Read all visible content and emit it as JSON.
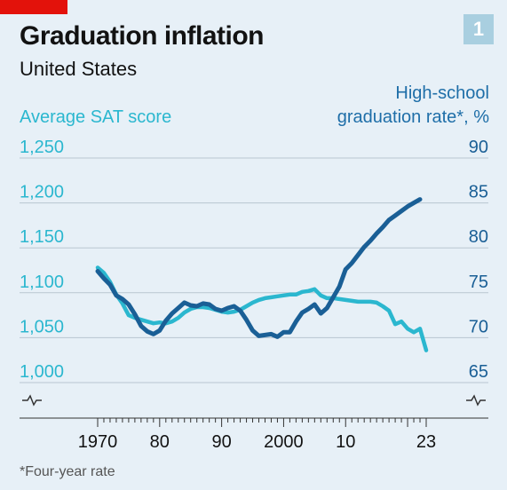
{
  "badge": "1",
  "title": "Graduation inflation",
  "subtitle": "United States",
  "footnote": "*Four-year rate",
  "colors": {
    "sat": "#2bb7cf",
    "grad": "#1a5f96",
    "accent": "#e3120b"
  },
  "chart_data": {
    "type": "line",
    "left_axis": {
      "label": "Average SAT score",
      "range": [
        1000,
        1250
      ],
      "ticks": [
        "1,250",
        "1,200",
        "1,150",
        "1,100",
        "1,050",
        "1,000"
      ],
      "tick_values": [
        1250,
        1200,
        1150,
        1100,
        1050,
        1000
      ]
    },
    "right_axis": {
      "label_lines": [
        "High-school",
        "graduation rate*, %"
      ],
      "range": [
        65,
        90
      ],
      "ticks": [
        "90",
        "85",
        "80",
        "75",
        "70",
        "65"
      ],
      "tick_values": [
        90,
        85,
        80,
        75,
        70,
        65
      ]
    },
    "x_axis": {
      "range": [
        1970,
        2023
      ],
      "ticks": [
        "1970",
        "80",
        "90",
        "2000",
        "10",
        "23"
      ],
      "tick_values": [
        1970,
        1980,
        1990,
        2000,
        2010,
        2023
      ]
    },
    "series": [
      {
        "key": "sat",
        "axis": "left",
        "color": "#2bb7cf",
        "x": [
          1970,
          1971,
          1972,
          1973,
          1974,
          1975,
          1976,
          1977,
          1978,
          1979,
          1980,
          1981,
          1982,
          1983,
          1984,
          1985,
          1986,
          1987,
          1988,
          1989,
          1990,
          1991,
          1992,
          1993,
          1994,
          1995,
          1996,
          1997,
          1998,
          1999,
          2000,
          2001,
          2002,
          2003,
          2004,
          2005,
          2006,
          2007,
          2008,
          2009,
          2010,
          2011,
          2012,
          2013,
          2014,
          2015,
          2016,
          2017,
          2018,
          2019,
          2020,
          2021,
          2022,
          2023
        ],
        "values": [
          1128,
          1122,
          1112,
          1098,
          1088,
          1075,
          1072,
          1070,
          1068,
          1066,
          1067,
          1066,
          1068,
          1072,
          1078,
          1082,
          1084,
          1084,
          1083,
          1081,
          1079,
          1078,
          1079,
          1081,
          1085,
          1089,
          1092,
          1094,
          1095,
          1096,
          1097,
          1098,
          1098,
          1101,
          1102,
          1104,
          1097,
          1094,
          1094,
          1093,
          1092,
          1091,
          1090,
          1090,
          1090,
          1089,
          1085,
          1080,
          1065,
          1068,
          1060,
          1056,
          1060,
          1036
        ]
      },
      {
        "key": "grad",
        "axis": "right",
        "color": "#1a5f96",
        "x": [
          1970,
          1971,
          1972,
          1973,
          1974,
          1975,
          1976,
          1977,
          1978,
          1979,
          1980,
          1981,
          1982,
          1983,
          1984,
          1985,
          1986,
          1987,
          1988,
          1989,
          1990,
          1991,
          1992,
          1993,
          1994,
          1995,
          1996,
          1997,
          1998,
          1999,
          2000,
          2001,
          2002,
          2003,
          2004,
          2005,
          2006,
          2007,
          2008,
          2009,
          2010,
          2011,
          2012,
          2013,
          2014,
          2015,
          2016,
          2017,
          2018,
          2019,
          2020,
          2021,
          2022
        ],
        "values": [
          77.4,
          76.6,
          75.9,
          74.7,
          74.3,
          73.7,
          72.6,
          71.3,
          70.7,
          70.4,
          70.8,
          71.9,
          72.7,
          73.3,
          73.9,
          73.6,
          73.5,
          73.8,
          73.7,
          73.2,
          73.0,
          73.3,
          73.5,
          73.0,
          72.0,
          70.8,
          70.2,
          70.3,
          70.4,
          70.1,
          70.6,
          70.6,
          71.8,
          72.8,
          73.2,
          73.7,
          72.7,
          73.3,
          74.5,
          75.7,
          77.6,
          78.3,
          79.2,
          80.1,
          80.8,
          81.6,
          82.3,
          83.1,
          83.6,
          84.1,
          84.6,
          85.0,
          85.4
        ]
      }
    ]
  }
}
